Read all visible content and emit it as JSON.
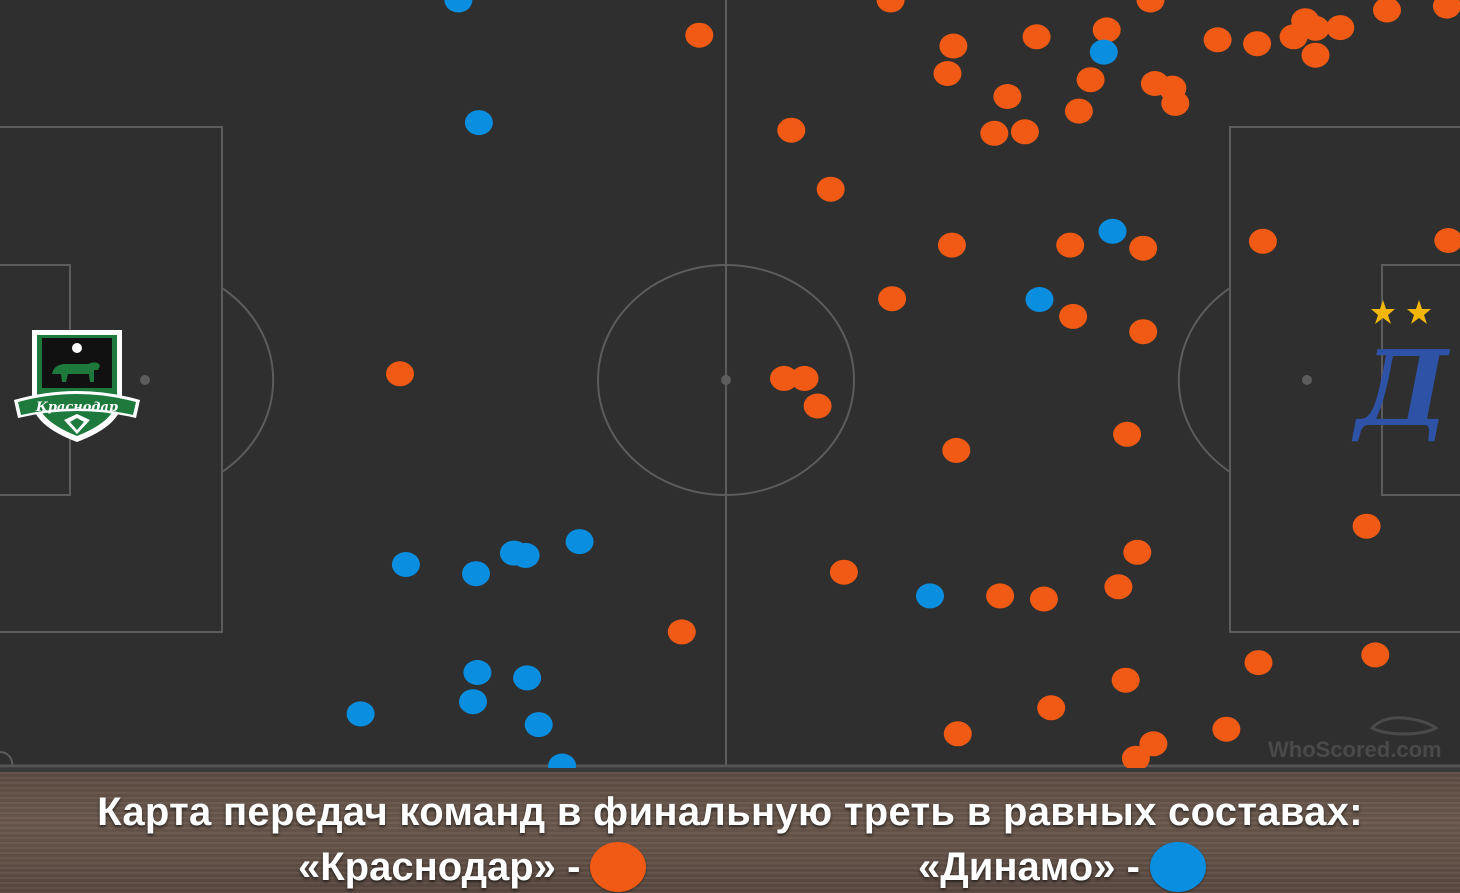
{
  "chart_data": {
    "type": "scatter",
    "title": "Карта передач команд в финальную треть в равных составах:",
    "xlim": [
      0,
      100
    ],
    "ylim": [
      0,
      100
    ],
    "grid": false,
    "legend": "bottom",
    "watermark": "WhoScored.com",
    "series": [
      {
        "name": "«Краснодар»",
        "color": "#f05a14",
        "points": [
          [
            47.9,
            95.4
          ],
          [
            54.2,
            83.0
          ],
          [
            56.9,
            75.3
          ],
          [
            27.4,
            51.2
          ],
          [
            53.7,
            50.6
          ],
          [
            55.1,
            50.6
          ],
          [
            56.0,
            47.0
          ],
          [
            65.3,
            94.0
          ],
          [
            64.9,
            90.4
          ],
          [
            69.0,
            87.4
          ],
          [
            68.1,
            82.6
          ],
          [
            70.2,
            82.8
          ],
          [
            71.0,
            95.2
          ],
          [
            74.7,
            89.6
          ],
          [
            73.9,
            85.5
          ],
          [
            75.8,
            96.1
          ],
          [
            79.1,
            89.1
          ],
          [
            80.3,
            88.5
          ],
          [
            80.5,
            86.5
          ],
          [
            83.4,
            94.8
          ],
          [
            86.1,
            94.3
          ],
          [
            88.6,
            95.2
          ],
          [
            89.4,
            97.3
          ],
          [
            90.1,
            96.3
          ],
          [
            91.8,
            96.4
          ],
          [
            90.1,
            92.8
          ],
          [
            95.0,
            98.7
          ],
          [
            99.1,
            99.2
          ],
          [
            61.1,
            61.0
          ],
          [
            65.2,
            68.0
          ],
          [
            73.3,
            68.0
          ],
          [
            78.3,
            67.6
          ],
          [
            73.5,
            58.7
          ],
          [
            78.3,
            56.7
          ],
          [
            86.5,
            68.5
          ],
          [
            99.2,
            68.6
          ],
          [
            65.5,
            41.2
          ],
          [
            77.2,
            43.3
          ],
          [
            93.6,
            31.3
          ],
          [
            57.8,
            25.3
          ],
          [
            68.5,
            22.2
          ],
          [
            71.5,
            21.8
          ],
          [
            77.9,
            27.9
          ],
          [
            76.6,
            23.4
          ],
          [
            46.7,
            17.5
          ],
          [
            86.2,
            13.5
          ],
          [
            94.2,
            14.5
          ],
          [
            77.1,
            11.2
          ],
          [
            72.0,
            7.6
          ],
          [
            65.6,
            4.2
          ],
          [
            79.0,
            2.9
          ],
          [
            84.0,
            4.8
          ],
          [
            77.8,
            1.0
          ],
          [
            61.0,
            100.0
          ],
          [
            78.8,
            100.0
          ]
        ]
      },
      {
        "name": "«Динамо»",
        "color": "#0a8fe0",
        "points": [
          [
            31.4,
            100.0
          ],
          [
            32.8,
            84.0
          ],
          [
            75.6,
            93.2
          ],
          [
            76.2,
            69.8
          ],
          [
            71.2,
            60.9
          ],
          [
            27.8,
            26.3
          ],
          [
            32.6,
            25.1
          ],
          [
            35.2,
            27.8
          ],
          [
            36.0,
            27.5
          ],
          [
            39.7,
            29.3
          ],
          [
            63.7,
            22.2
          ],
          [
            32.7,
            12.2
          ],
          [
            36.1,
            11.5
          ],
          [
            32.4,
            8.4
          ],
          [
            24.7,
            6.8
          ],
          [
            36.9,
            5.4
          ],
          [
            38.5,
            0.0
          ]
        ]
      }
    ]
  },
  "caption": {
    "title": "Карта передач команд в финальную треть в равных составах:",
    "team1_label": "«Краснодар» -",
    "team2_label": "«Динамо» -",
    "team1_color": "#f05a14",
    "team2_color": "#0a8fe0"
  },
  "crests": {
    "left_team_text": "Краснодар",
    "right_team_letter": "Д"
  },
  "watermark": "WhoScored.com",
  "colors": {
    "pitch": "#2f2f2f",
    "lines": "#5c5c5c",
    "krasnodar_green": "#1e7a3c",
    "dynamo_blue": "#2e52a6",
    "star_gold": "#f2b705"
  }
}
